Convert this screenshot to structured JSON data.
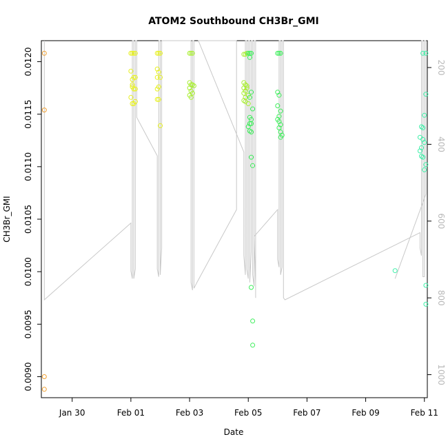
{
  "chart_data": {
    "type": "scatter",
    "title": "ATOM2 Southbound CH3Br_GMI",
    "xlabel": "Date",
    "ylabel": "CH3Br_GMI",
    "x_unit": "days in 2017 (Jan 28 = 0)",
    "xlim": [
      0.95,
      14.1
    ],
    "ylim": [
      0.0088,
      0.0122
    ],
    "x_ticks": [
      {
        "value": 2,
        "label": "Jan 30"
      },
      {
        "value": 4,
        "label": "Feb 01"
      },
      {
        "value": 6,
        "label": "Feb 03"
      },
      {
        "value": 8,
        "label": "Feb 05"
      },
      {
        "value": 10,
        "label": "Feb 07"
      },
      {
        "value": 12,
        "label": "Feb 09"
      },
      {
        "value": 14,
        "label": "Feb 11"
      }
    ],
    "y_ticks": [
      {
        "value": 0.009,
        "label": "0.0090"
      },
      {
        "value": 0.0095,
        "label": "0.0095"
      },
      {
        "value": 0.01,
        "label": "0.0100"
      },
      {
        "value": 0.0105,
        "label": "0.0105"
      },
      {
        "value": 0.011,
        "label": "0.0110"
      },
      {
        "value": 0.0115,
        "label": "0.0115"
      },
      {
        "value": 0.012,
        "label": "0.0120"
      }
    ],
    "right_axis": {
      "lim": [
        1060,
        130
      ],
      "ticks": [
        {
          "value": 200,
          "label": "200"
        },
        {
          "value": 400,
          "label": "400"
        },
        {
          "value": 600,
          "label": "600"
        },
        {
          "value": 800,
          "label": "800"
        },
        {
          "value": 1000,
          "label": "1000"
        }
      ]
    },
    "grid": false,
    "legend": "none",
    "colors": {
      "line": "#c8c8c8",
      "orange": "#f0a030",
      "yellow": "#e6f01e",
      "ygreen": "#a8ee30",
      "green": "#3cee5a",
      "teal": "#3cf0a8"
    },
    "profile_line": [
      [
        1.05,
        130
      ],
      [
        1.05,
        805
      ],
      [
        4.0,
        605
      ],
      [
        4.0,
        730
      ],
      [
        4.05,
        750
      ],
      [
        4.05,
        130
      ],
      [
        4.1,
        130
      ],
      [
        4.1,
        750
      ],
      [
        4.15,
        725
      ],
      [
        4.15,
        130
      ],
      [
        4.2,
        130
      ],
      [
        4.2,
        330
      ],
      [
        4.9,
        430
      ],
      [
        4.9,
        725
      ],
      [
        4.95,
        745
      ],
      [
        4.95,
        130
      ],
      [
        5.0,
        130
      ],
      [
        5.0,
        740
      ],
      [
        5.05,
        670
      ],
      [
        5.05,
        130
      ],
      [
        5.1,
        130
      ],
      [
        6.05,
        130
      ],
      [
        6.05,
        760
      ],
      [
        6.1,
        780
      ],
      [
        6.1,
        130
      ],
      [
        6.15,
        130
      ],
      [
        6.15,
        775
      ],
      [
        6.25,
        760
      ],
      [
        7.6,
        570
      ],
      [
        7.6,
        130
      ],
      [
        6.3,
        130
      ],
      [
        7.85,
        420
      ],
      [
        7.85,
        690
      ],
      [
        7.9,
        740
      ],
      [
        7.9,
        130
      ],
      [
        7.95,
        130
      ],
      [
        7.95,
        725
      ],
      [
        8.0,
        750
      ],
      [
        8.0,
        130
      ],
      [
        8.05,
        130
      ],
      [
        8.05,
        760
      ],
      [
        8.1,
        680
      ],
      [
        8.1,
        130
      ],
      [
        8.15,
        130
      ],
      [
        8.15,
        740
      ],
      [
        8.2,
        770
      ],
      [
        8.2,
        130
      ],
      [
        8.25,
        130
      ],
      [
        8.25,
        800
      ],
      [
        8.25,
        760
      ],
      [
        8.2,
        640
      ],
      [
        9.0,
        570
      ],
      [
        9.0,
        700
      ],
      [
        9.05,
        720
      ],
      [
        9.05,
        130
      ],
      [
        9.1,
        130
      ],
      [
        9.1,
        740
      ],
      [
        9.15,
        720
      ],
      [
        9.15,
        130
      ],
      [
        9.2,
        130
      ],
      [
        9.2,
        800
      ],
      [
        9.25,
        805
      ],
      [
        13.85,
        630
      ],
      [
        13.85,
        670
      ],
      [
        13.9,
        690
      ],
      [
        13.9,
        130
      ],
      [
        13.95,
        130
      ],
      [
        13.95,
        745
      ],
      [
        14.0,
        745
      ],
      [
        14.0,
        130
      ],
      [
        14.05,
        130
      ],
      [
        14.05,
        530
      ],
      [
        13.0,
        750
      ]
    ],
    "series": [
      {
        "color": "orange",
        "points": [
          [
            1.05,
            0.01208
          ],
          [
            1.05,
            0.01154
          ],
          [
            1.05,
            0.009
          ],
          [
            1.05,
            0.00888
          ]
        ]
      },
      {
        "color": "yellow",
        "points": [
          [
            4.0,
            0.01208
          ],
          [
            4.05,
            0.01208
          ],
          [
            4.1,
            0.01208
          ],
          [
            4.15,
            0.01208
          ],
          [
            4.0,
            0.01191
          ],
          [
            4.05,
            0.01183
          ],
          [
            4.1,
            0.01185
          ],
          [
            4.15,
            0.01185
          ],
          [
            4.05,
            0.01176
          ],
          [
            4.1,
            0.01174
          ],
          [
            4.15,
            0.01174
          ],
          [
            4.0,
            0.01166
          ],
          [
            4.05,
            0.0116
          ],
          [
            4.1,
            0.0116
          ],
          [
            4.15,
            0.01162
          ],
          [
            4.05,
            0.01178
          ],
          [
            4.9,
            0.01208
          ],
          [
            4.95,
            0.01208
          ],
          [
            5.0,
            0.01208
          ],
          [
            4.9,
            0.01193
          ],
          [
            4.95,
            0.0119
          ],
          [
            5.0,
            0.01185
          ],
          [
            4.9,
            0.01185
          ],
          [
            4.95,
            0.01176
          ],
          [
            4.9,
            0.01174
          ],
          [
            4.9,
            0.01164
          ],
          [
            4.95,
            0.01164
          ],
          [
            5.0,
            0.01139
          ]
        ]
      },
      {
        "color": "ygreen",
        "points": [
          [
            6.0,
            0.01208
          ],
          [
            6.05,
            0.01208
          ],
          [
            6.1,
            0.01208
          ],
          [
            6.0,
            0.0118
          ],
          [
            6.05,
            0.01178
          ],
          [
            6.1,
            0.01178
          ],
          [
            6.15,
            0.01177
          ],
          [
            6.0,
            0.01175
          ],
          [
            6.05,
            0.01172
          ],
          [
            6.1,
            0.0117
          ],
          [
            6.0,
            0.01168
          ],
          [
            6.05,
            0.01166
          ],
          [
            7.85,
            0.01207
          ],
          [
            7.9,
            0.01207
          ],
          [
            7.95,
            0.01208
          ],
          [
            7.85,
            0.0118
          ],
          [
            7.9,
            0.01178
          ],
          [
            7.95,
            0.01177
          ],
          [
            7.85,
            0.01175
          ],
          [
            7.9,
            0.01172
          ],
          [
            7.95,
            0.01175
          ],
          [
            7.85,
            0.0117
          ],
          [
            8.0,
            0.01168
          ],
          [
            7.9,
            0.01166
          ],
          [
            7.85,
            0.01163
          ],
          [
            7.9,
            0.01162
          ],
          [
            8.0,
            0.0116
          ]
        ]
      },
      {
        "color": "green",
        "points": [
          [
            8.0,
            0.01208
          ],
          [
            8.05,
            0.01208
          ],
          [
            8.1,
            0.01208
          ],
          [
            8.05,
            0.01204
          ],
          [
            8.1,
            0.01171
          ],
          [
            8.05,
            0.01166
          ],
          [
            8.15,
            0.01155
          ],
          [
            8.05,
            0.01147
          ],
          [
            8.1,
            0.01145
          ],
          [
            8.05,
            0.01141
          ],
          [
            8.1,
            0.01141
          ],
          [
            8.0,
            0.01138
          ],
          [
            8.05,
            0.01134
          ],
          [
            8.1,
            0.01133
          ],
          [
            8.1,
            0.01109
          ],
          [
            8.15,
            0.01101
          ],
          [
            8.1,
            0.00985
          ],
          [
            8.15,
            0.00953
          ],
          [
            8.15,
            0.0093
          ],
          [
            9.0,
            0.01208
          ],
          [
            9.05,
            0.01208
          ],
          [
            9.1,
            0.01208
          ],
          [
            9.0,
            0.01171
          ],
          [
            9.05,
            0.01168
          ],
          [
            9.0,
            0.01158
          ],
          [
            9.1,
            0.01153
          ],
          [
            9.05,
            0.01148
          ],
          [
            9.0,
            0.01145
          ],
          [
            9.05,
            0.01143
          ],
          [
            9.1,
            0.0114
          ],
          [
            9.05,
            0.01137
          ],
          [
            9.1,
            0.01133
          ],
          [
            9.15,
            0.0113
          ],
          [
            9.1,
            0.01128
          ]
        ]
      },
      {
        "color": "teal",
        "points": [
          [
            13.0,
            0.01001
          ],
          [
            13.95,
            0.01208
          ],
          [
            14.05,
            0.01208
          ],
          [
            14.05,
            0.01169
          ],
          [
            14.0,
            0.01149
          ],
          [
            13.9,
            0.01138
          ],
          [
            13.95,
            0.01137
          ],
          [
            13.85,
            0.01128
          ],
          [
            13.95,
            0.01126
          ],
          [
            14.0,
            0.01123
          ],
          [
            13.9,
            0.01118
          ],
          [
            13.85,
            0.01115
          ],
          [
            13.9,
            0.0111
          ],
          [
            13.95,
            0.01109
          ],
          [
            14.05,
            0.01102
          ],
          [
            14.0,
            0.01097
          ],
          [
            14.05,
            0.00987
          ],
          [
            14.05,
            0.00969
          ]
        ]
      }
    ]
  }
}
